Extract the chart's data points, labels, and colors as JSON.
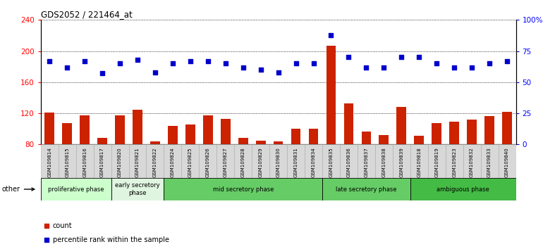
{
  "title": "GDS2052 / 221464_at",
  "samples": [
    "GSM109814",
    "GSM109815",
    "GSM109816",
    "GSM109817",
    "GSM109820",
    "GSM109821",
    "GSM109822",
    "GSM109824",
    "GSM109825",
    "GSM109826",
    "GSM109827",
    "GSM109828",
    "GSM109829",
    "GSM109830",
    "GSM109831",
    "GSM109834",
    "GSM109835",
    "GSM109836",
    "GSM109837",
    "GSM109838",
    "GSM109839",
    "GSM109818",
    "GSM109819",
    "GSM109823",
    "GSM109832",
    "GSM109833",
    "GSM109840"
  ],
  "counts": [
    121,
    107,
    117,
    88,
    117,
    125,
    84,
    104,
    106,
    117,
    113,
    88,
    85,
    84,
    100,
    100,
    207,
    133,
    97,
    92,
    128,
    91,
    107,
    109,
    112,
    116,
    122
  ],
  "percentile_ranks": [
    67,
    62,
    67,
    57,
    65,
    68,
    58,
    65,
    67,
    67,
    65,
    62,
    60,
    58,
    65,
    65,
    88,
    70,
    62,
    62,
    70,
    70,
    65,
    62,
    62,
    65,
    67
  ],
  "phases": [
    {
      "label": "proliferative phase",
      "start": 0,
      "end": 4,
      "color": "#ccffcc"
    },
    {
      "label": "early secretory\nphase",
      "start": 4,
      "end": 7,
      "color": "#e0f5e0"
    },
    {
      "label": "mid secretory phase",
      "start": 7,
      "end": 16,
      "color": "#66cc66"
    },
    {
      "label": "late secretory phase",
      "start": 16,
      "end": 21,
      "color": "#66cc66"
    },
    {
      "label": "ambiguous phase",
      "start": 21,
      "end": 27,
      "color": "#44bb44"
    }
  ],
  "bar_color": "#cc2200",
  "dot_color": "#0000cc",
  "ylim_left": [
    80,
    240
  ],
  "ylim_right": [
    0,
    100
  ],
  "yticks_left": [
    80,
    120,
    160,
    200,
    240
  ],
  "ytick_labels_left": [
    "80",
    "120",
    "160",
    "200",
    "240"
  ],
  "yticks_right": [
    0,
    25,
    50,
    75,
    100
  ],
  "ytick_labels_right": [
    "0",
    "25",
    "50",
    "75",
    "100%"
  ],
  "bg_color": "#ffffff",
  "other_label": "other",
  "legend_count_label": "count",
  "legend_pct_label": "percentile rank within the sample"
}
